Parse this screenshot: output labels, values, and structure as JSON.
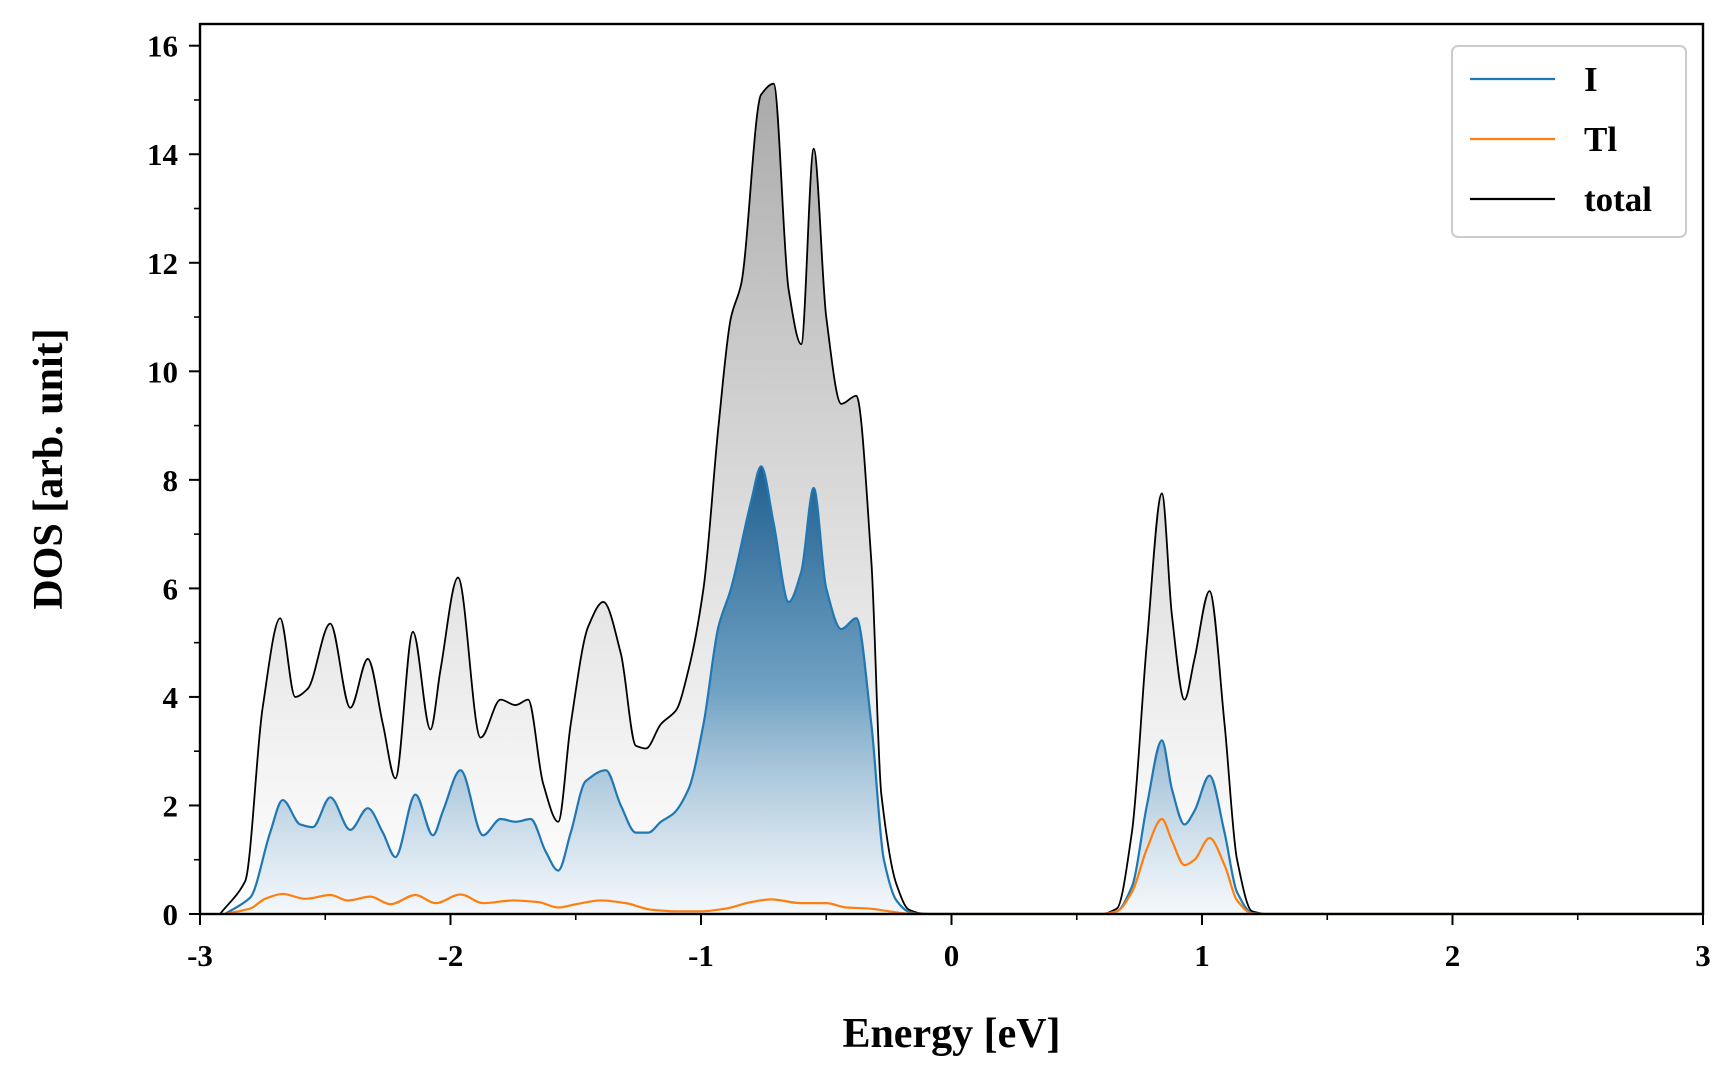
{
  "chart_data": {
    "type": "area",
    "title": "",
    "xlabel": "Energy [eV]",
    "ylabel": "DOS [arb. unit]",
    "xlim": [
      -3,
      3
    ],
    "ylim": [
      0,
      16.4
    ],
    "xticks": [
      -3,
      -2,
      -1,
      0,
      1,
      2,
      3
    ],
    "xtick_labels": [
      "-3",
      "-2",
      "-1",
      "0",
      "1",
      "2",
      "3"
    ],
    "yticks": [
      0,
      2,
      4,
      6,
      8,
      10,
      12,
      14,
      16
    ],
    "ytick_labels": [
      "0",
      "2",
      "4",
      "6",
      "8",
      "10",
      "12",
      "14",
      "16"
    ],
    "legend_position": "top-right",
    "series": [
      {
        "name": "I",
        "color": "#1f77b4",
        "fill": "gradient",
        "x": [
          -2.9,
          -2.8,
          -2.72,
          -2.67,
          -2.6,
          -2.55,
          -2.48,
          -2.4,
          -2.33,
          -2.27,
          -2.22,
          -2.14,
          -2.07,
          -2.03,
          -1.96,
          -1.87,
          -1.8,
          -1.74,
          -1.68,
          -1.62,
          -1.57,
          -1.52,
          -1.46,
          -1.38,
          -1.32,
          -1.26,
          -1.21,
          -1.16,
          -1.11,
          -1.05,
          -0.99,
          -0.93,
          -0.88,
          -0.8,
          -0.76,
          -0.71,
          -0.65,
          -0.6,
          -0.55,
          -0.5,
          -0.44,
          -0.38,
          -0.32,
          -0.27,
          -0.22,
          -0.17,
          -0.12,
          -0.07,
          0.0,
          0.6,
          0.66,
          0.72,
          0.78,
          0.84,
          0.88,
          0.93,
          0.97,
          1.03,
          1.09,
          1.14,
          1.2,
          1.26,
          3.0
        ],
        "y": [
          0,
          0.3,
          1.5,
          2.1,
          1.65,
          1.6,
          2.15,
          1.55,
          1.95,
          1.5,
          1.05,
          2.2,
          1.45,
          1.9,
          2.65,
          1.45,
          1.75,
          1.7,
          1.75,
          1.15,
          0.8,
          1.5,
          2.45,
          2.65,
          2.0,
          1.5,
          1.5,
          1.7,
          1.85,
          2.3,
          3.5,
          5.3,
          6.0,
          7.6,
          8.25,
          7.2,
          5.75,
          6.3,
          7.85,
          6.0,
          5.25,
          5.45,
          3.5,
          1.0,
          0.25,
          0.04,
          0,
          0,
          0,
          0,
          0.05,
          0.5,
          2.0,
          3.2,
          2.3,
          1.65,
          1.9,
          2.55,
          1.5,
          0.4,
          0.02,
          0,
          0
        ]
      },
      {
        "name": "Tl",
        "color": "#ff7f0e",
        "fill": "none",
        "x": [
          -2.9,
          -2.8,
          -2.74,
          -2.67,
          -2.58,
          -2.48,
          -2.41,
          -2.32,
          -2.24,
          -2.14,
          -2.06,
          -1.96,
          -1.87,
          -1.75,
          -1.65,
          -1.57,
          -1.5,
          -1.4,
          -1.3,
          -1.2,
          -1.1,
          -1.0,
          -0.9,
          -0.8,
          -0.72,
          -0.6,
          -0.5,
          -0.42,
          -0.33,
          -0.25,
          -0.18,
          -0.1,
          0.0,
          0.6,
          0.66,
          0.72,
          0.78,
          0.84,
          0.88,
          0.93,
          0.97,
          1.03,
          1.09,
          1.14,
          1.2,
          1.26,
          3.0
        ],
        "y": [
          0,
          0.1,
          0.28,
          0.37,
          0.28,
          0.35,
          0.25,
          0.32,
          0.18,
          0.35,
          0.2,
          0.36,
          0.2,
          0.25,
          0.22,
          0.12,
          0.18,
          0.25,
          0.2,
          0.08,
          0.05,
          0.05,
          0.1,
          0.22,
          0.27,
          0.2,
          0.2,
          0.12,
          0.1,
          0.05,
          0.01,
          0,
          0,
          0,
          0.05,
          0.4,
          1.2,
          1.75,
          1.35,
          0.9,
          1.0,
          1.4,
          0.9,
          0.25,
          0.01,
          0,
          0
        ]
      },
      {
        "name": "total",
        "color": "#000000",
        "fill": "gradient",
        "x": [
          -2.92,
          -2.82,
          -2.75,
          -2.68,
          -2.62,
          -2.57,
          -2.48,
          -2.4,
          -2.33,
          -2.27,
          -2.22,
          -2.15,
          -2.08,
          -2.04,
          -1.97,
          -1.88,
          -1.8,
          -1.74,
          -1.69,
          -1.63,
          -1.57,
          -1.52,
          -1.45,
          -1.39,
          -1.32,
          -1.26,
          -1.22,
          -1.16,
          -1.1,
          -1.05,
          -0.99,
          -0.93,
          -0.88,
          -0.84,
          -0.76,
          -0.71,
          -0.65,
          -0.6,
          -0.55,
          -0.5,
          -0.44,
          -0.38,
          -0.32,
          -0.28,
          -0.22,
          -0.17,
          -0.12,
          -0.07,
          0.0,
          0.6,
          0.66,
          0.72,
          0.78,
          0.84,
          0.88,
          0.93,
          0.97,
          1.03,
          1.09,
          1.14,
          1.2,
          1.26,
          3.0
        ],
        "y": [
          0,
          0.6,
          3.8,
          5.45,
          4.0,
          4.15,
          5.35,
          3.8,
          4.7,
          3.5,
          2.5,
          5.2,
          3.4,
          4.5,
          6.2,
          3.25,
          3.95,
          3.85,
          3.95,
          2.4,
          1.7,
          3.5,
          5.3,
          5.75,
          4.8,
          3.1,
          3.05,
          3.5,
          3.75,
          4.5,
          6.0,
          9.0,
          11.0,
          11.6,
          15.1,
          15.3,
          11.5,
          10.5,
          14.1,
          11.0,
          9.4,
          9.55,
          6.5,
          2.2,
          0.55,
          0.08,
          0.01,
          0,
          0,
          0,
          0.1,
          1.5,
          5.0,
          7.75,
          5.5,
          3.95,
          4.7,
          5.95,
          3.5,
          1.0,
          0.05,
          0,
          0
        ]
      }
    ]
  }
}
